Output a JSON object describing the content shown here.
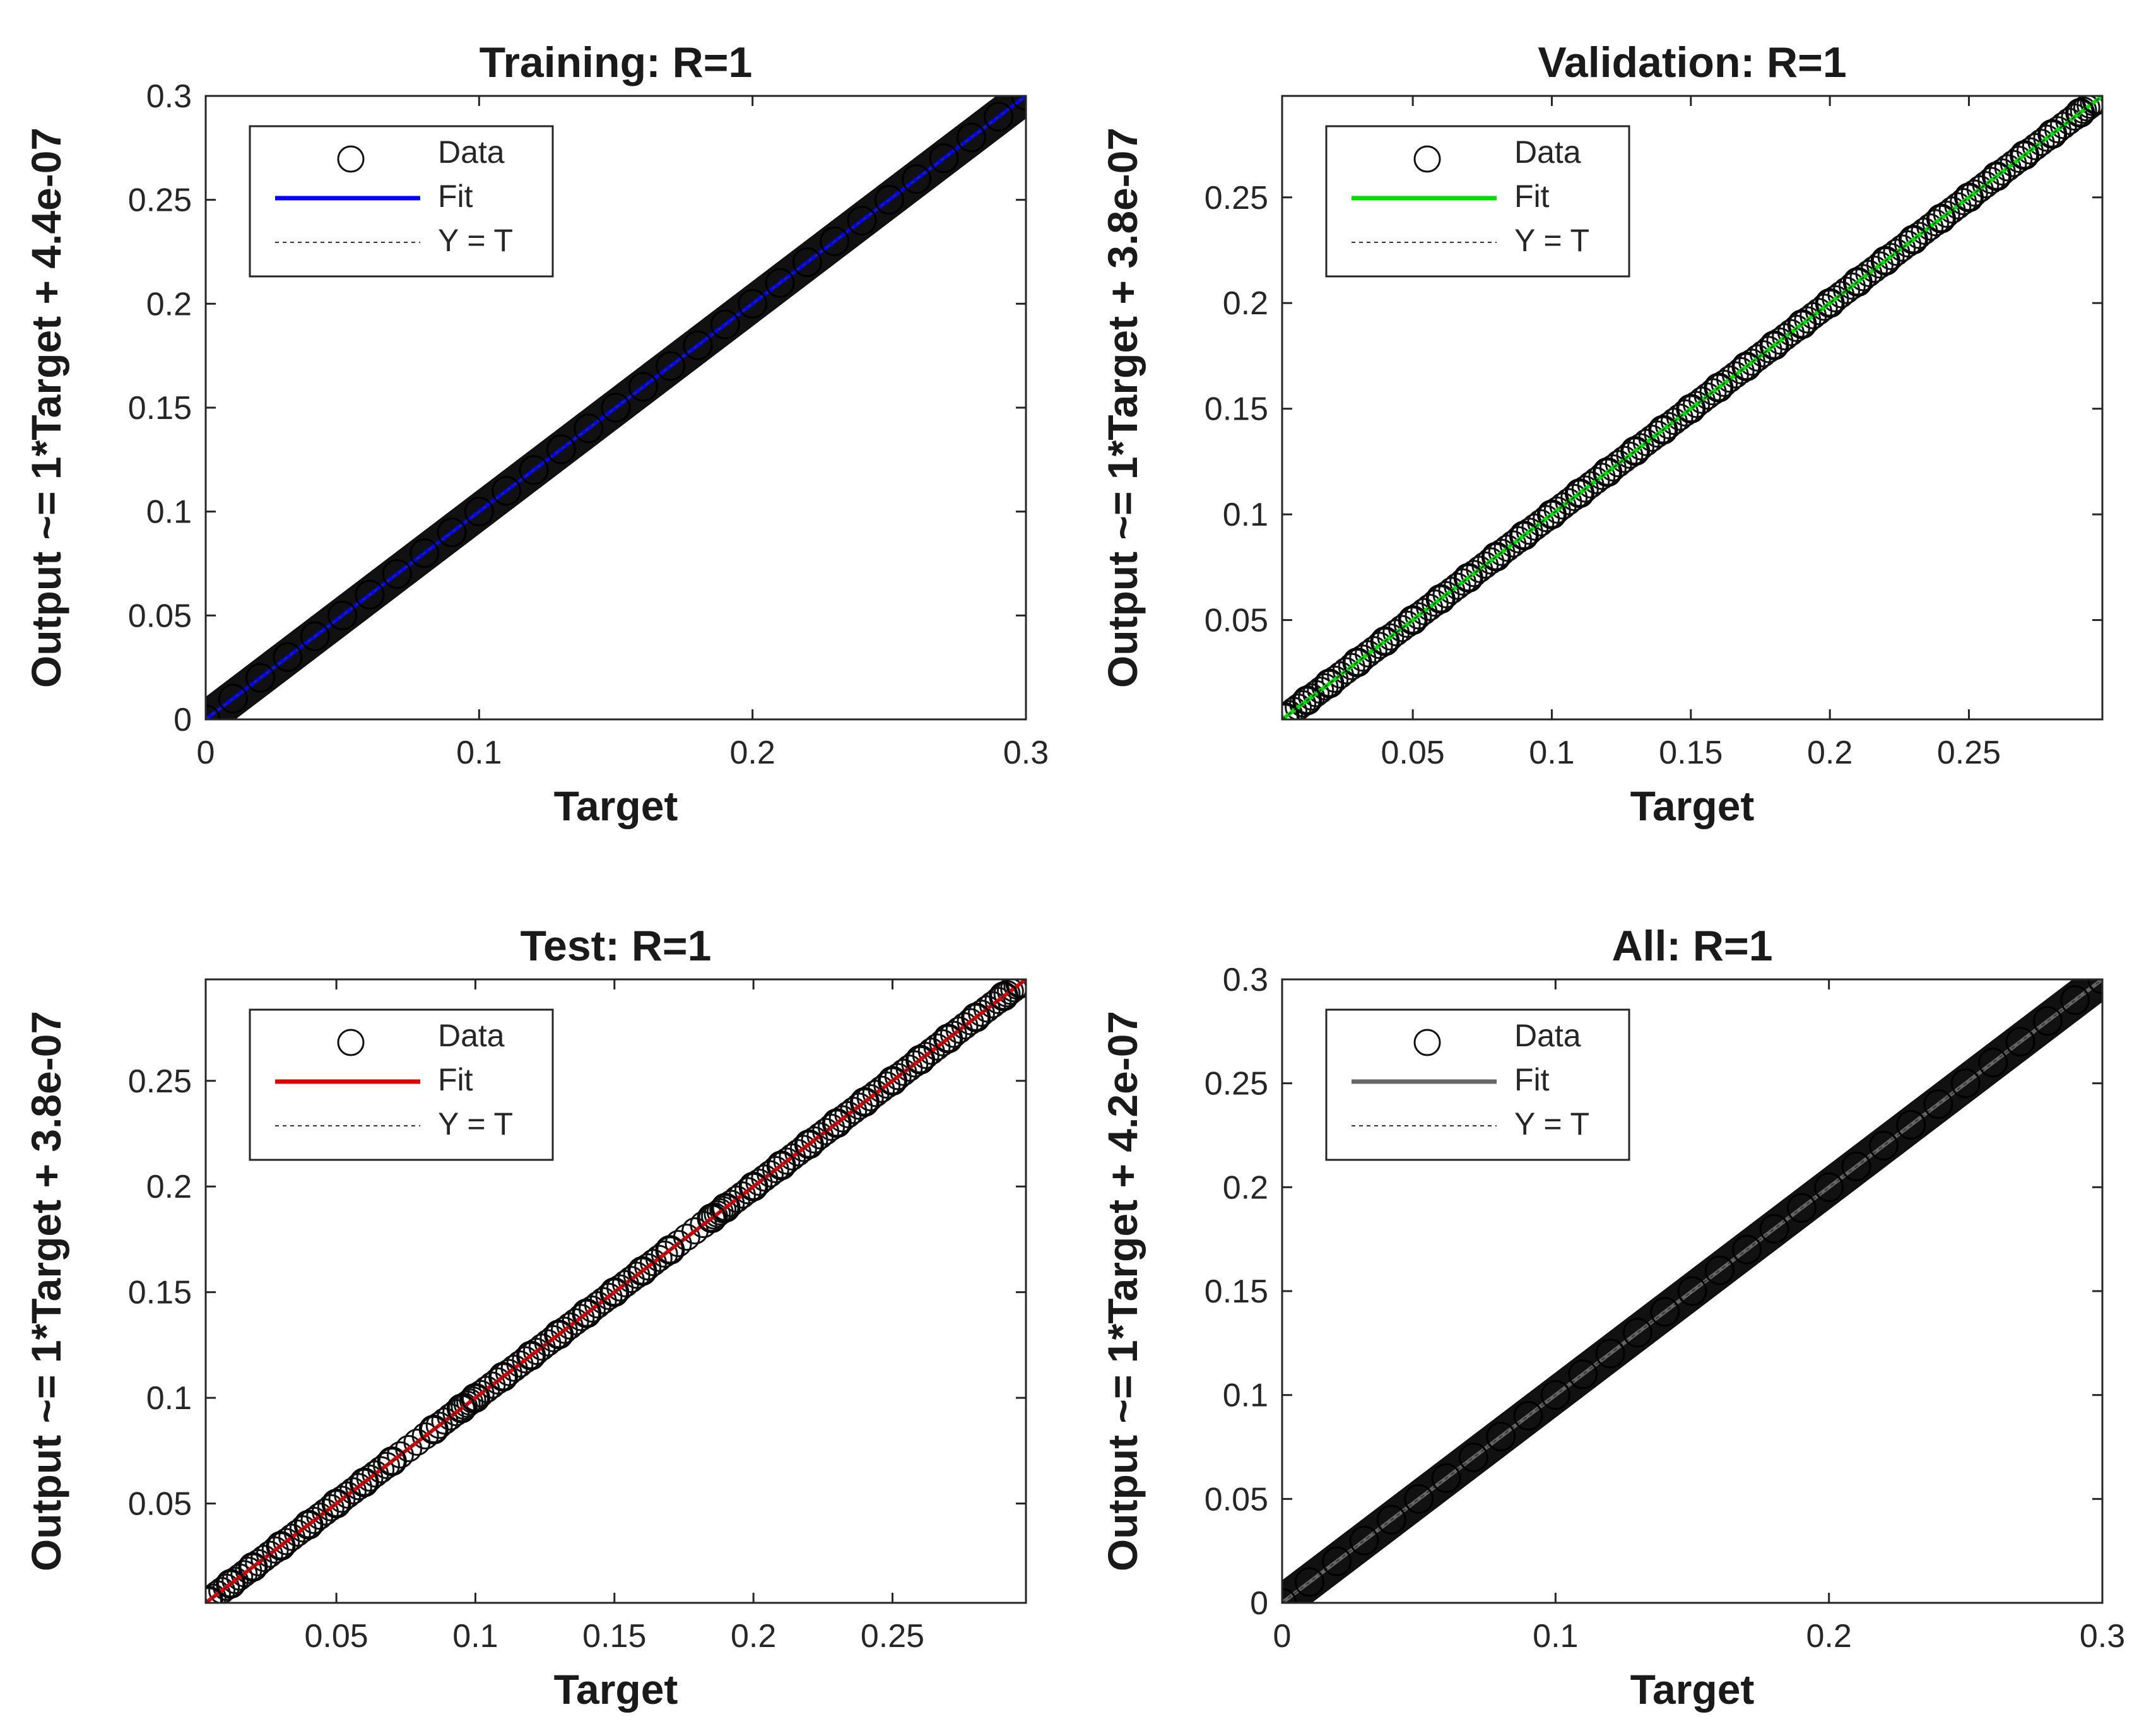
{
  "chart_data": [
    {
      "type": "scatter",
      "title": "Training: R=1",
      "xlabel": "Target",
      "ylabel": "Output ~= 1*Target + 4.4e-07",
      "xlim": [
        0,
        0.3
      ],
      "ylim": [
        0,
        0.3
      ],
      "xticks": [
        0,
        0.1,
        0.2,
        0.3
      ],
      "xtick_labels": [
        "0",
        "0.1",
        "0.2",
        "0.3"
      ],
      "yticks": [
        0,
        0.05,
        0.1,
        0.15,
        0.2,
        0.25,
        0.3
      ],
      "ytick_labels": [
        "0",
        "0.05",
        "0.1",
        "0.15",
        "0.2",
        "0.25",
        "0.3"
      ],
      "legend_position": "top-left",
      "colors": {
        "fit": "#0000ff",
        "marker": "#000000",
        "identity": "#333333"
      },
      "series": [
        {
          "name": "Data",
          "style": "circle-markers",
          "x": [
            0.0,
            0.01,
            0.02,
            0.03,
            0.04,
            0.05,
            0.06,
            0.07,
            0.08,
            0.09,
            0.1,
            0.11,
            0.12,
            0.13,
            0.14,
            0.15,
            0.16,
            0.17,
            0.18,
            0.19,
            0.2,
            0.21,
            0.22,
            0.23,
            0.24,
            0.25,
            0.26,
            0.27,
            0.28,
            0.29,
            0.3
          ],
          "y": [
            0.0,
            0.01,
            0.02,
            0.03,
            0.04,
            0.05,
            0.06,
            0.07,
            0.08,
            0.09,
            0.1,
            0.11,
            0.12,
            0.13,
            0.14,
            0.15,
            0.16,
            0.17,
            0.18,
            0.19,
            0.2,
            0.21,
            0.22,
            0.23,
            0.24,
            0.25,
            0.26,
            0.27,
            0.28,
            0.29,
            0.3
          ]
        },
        {
          "name": "Fit",
          "style": "solid-line",
          "x": [
            0,
            0.3
          ],
          "y": [
            0,
            0.3
          ]
        },
        {
          "name": "Y = T",
          "style": "dotted-line",
          "x": [
            0,
            0.3
          ],
          "y": [
            0,
            0.3
          ]
        }
      ],
      "legend": [
        "Data",
        "Fit",
        "Y = T"
      ]
    },
    {
      "type": "scatter",
      "title": "Validation: R=1",
      "xlabel": "Target",
      "ylabel": "Output ~= 1*Target + 3.8e-07",
      "xlim": [
        0.003,
        0.298
      ],
      "ylim": [
        0.003,
        0.298
      ],
      "xticks": [
        0.05,
        0.1,
        0.15,
        0.2,
        0.25
      ],
      "xtick_labels": [
        "0.05",
        "0.1",
        "0.15",
        "0.2",
        "0.25"
      ],
      "yticks": [
        0.05,
        0.1,
        0.15,
        0.2,
        0.25
      ],
      "ytick_labels": [
        "0.05",
        "0.1",
        "0.15",
        "0.2",
        "0.25"
      ],
      "legend_position": "top-left",
      "colors": {
        "fit": "#00dd00",
        "marker": "#000000",
        "identity": "#333333"
      },
      "series": [
        {
          "name": "Data",
          "style": "circle-markers",
          "x": [
            0.004,
            0.012,
            0.02,
            0.03,
            0.04,
            0.05,
            0.06,
            0.07,
            0.08,
            0.09,
            0.1,
            0.11,
            0.12,
            0.13,
            0.14,
            0.15,
            0.16,
            0.17,
            0.18,
            0.19,
            0.2,
            0.21,
            0.22,
            0.23,
            0.24,
            0.25,
            0.26,
            0.27,
            0.28,
            0.29,
            0.296
          ],
          "y": [
            0.004,
            0.012,
            0.02,
            0.03,
            0.04,
            0.05,
            0.06,
            0.07,
            0.08,
            0.09,
            0.1,
            0.11,
            0.12,
            0.13,
            0.14,
            0.15,
            0.16,
            0.17,
            0.18,
            0.19,
            0.2,
            0.21,
            0.22,
            0.23,
            0.24,
            0.25,
            0.26,
            0.27,
            0.28,
            0.29,
            0.296
          ]
        },
        {
          "name": "Fit",
          "style": "solid-line",
          "x": [
            0.003,
            0.298
          ],
          "y": [
            0.003,
            0.298
          ]
        },
        {
          "name": "Y = T",
          "style": "dotted-line",
          "x": [
            0.003,
            0.298
          ],
          "y": [
            0.003,
            0.298
          ]
        }
      ],
      "legend": [
        "Data",
        "Fit",
        "Y = T"
      ]
    },
    {
      "type": "scatter",
      "title": "Test: R=1",
      "xlabel": "Target",
      "ylabel": "Output ~= 1*Target + 3.8e-07",
      "xlim": [
        0.003,
        0.298
      ],
      "ylim": [
        0.003,
        0.298
      ],
      "xticks": [
        0.05,
        0.1,
        0.15,
        0.2,
        0.25
      ],
      "xtick_labels": [
        "0.05",
        "0.1",
        "0.15",
        "0.2",
        "0.25"
      ],
      "yticks": [
        0.05,
        0.1,
        0.15,
        0.2,
        0.25
      ],
      "ytick_labels": [
        "0.05",
        "0.1",
        "0.15",
        "0.2",
        "0.25"
      ],
      "legend_position": "top-left",
      "colors": {
        "fit": "#dd0000",
        "marker": "#000000",
        "identity": "#333333"
      },
      "series": [
        {
          "name": "Data",
          "style": "circle-markers",
          "x": [
            0.004,
            0.012,
            0.02,
            0.03,
            0.04,
            0.05,
            0.06,
            0.07,
            0.085,
            0.095,
            0.1,
            0.11,
            0.12,
            0.13,
            0.14,
            0.15,
            0.16,
            0.17,
            0.185,
            0.19,
            0.2,
            0.21,
            0.22,
            0.23,
            0.24,
            0.25,
            0.26,
            0.27,
            0.28,
            0.29,
            0.296
          ],
          "y": [
            0.004,
            0.012,
            0.02,
            0.03,
            0.04,
            0.05,
            0.06,
            0.07,
            0.085,
            0.095,
            0.1,
            0.11,
            0.12,
            0.13,
            0.14,
            0.15,
            0.16,
            0.17,
            0.185,
            0.19,
            0.2,
            0.21,
            0.22,
            0.23,
            0.24,
            0.25,
            0.26,
            0.27,
            0.28,
            0.29,
            0.296
          ]
        },
        {
          "name": "Fit",
          "style": "solid-line",
          "x": [
            0.003,
            0.298
          ],
          "y": [
            0.003,
            0.298
          ]
        },
        {
          "name": "Y = T",
          "style": "dotted-line",
          "x": [
            0.003,
            0.298
          ],
          "y": [
            0.003,
            0.298
          ]
        }
      ],
      "legend": [
        "Data",
        "Fit",
        "Y = T"
      ]
    },
    {
      "type": "scatter",
      "title": "All: R=1",
      "xlabel": "Target",
      "ylabel": "Output ~= 1*Target + 4.2e-07",
      "xlim": [
        0,
        0.3
      ],
      "ylim": [
        0,
        0.3
      ],
      "xticks": [
        0,
        0.1,
        0.2,
        0.3
      ],
      "xtick_labels": [
        "0",
        "0.1",
        "0.2",
        "0.3"
      ],
      "yticks": [
        0,
        0.05,
        0.1,
        0.15,
        0.2,
        0.25,
        0.3
      ],
      "ytick_labels": [
        "0",
        "0.05",
        "0.1",
        "0.15",
        "0.2",
        "0.25",
        "0.3"
      ],
      "legend_position": "top-left",
      "colors": {
        "fit": "#666666",
        "marker": "#000000",
        "identity": "#333333"
      },
      "series": [
        {
          "name": "Data",
          "style": "circle-markers",
          "x": [
            0.0,
            0.01,
            0.02,
            0.03,
            0.04,
            0.05,
            0.06,
            0.07,
            0.08,
            0.09,
            0.1,
            0.11,
            0.12,
            0.13,
            0.14,
            0.15,
            0.16,
            0.17,
            0.18,
            0.19,
            0.2,
            0.21,
            0.22,
            0.23,
            0.24,
            0.25,
            0.26,
            0.27,
            0.28,
            0.29,
            0.3
          ],
          "y": [
            0.0,
            0.01,
            0.02,
            0.03,
            0.04,
            0.05,
            0.06,
            0.07,
            0.08,
            0.09,
            0.1,
            0.11,
            0.12,
            0.13,
            0.14,
            0.15,
            0.16,
            0.17,
            0.18,
            0.19,
            0.2,
            0.21,
            0.22,
            0.23,
            0.24,
            0.25,
            0.26,
            0.27,
            0.28,
            0.29,
            0.3
          ]
        },
        {
          "name": "Fit",
          "style": "solid-line",
          "x": [
            0,
            0.3
          ],
          "y": [
            0,
            0.3
          ]
        },
        {
          "name": "Y = T",
          "style": "dotted-line",
          "x": [
            0,
            0.3
          ],
          "y": [
            0,
            0.3
          ]
        }
      ],
      "legend": [
        "Data",
        "Fit",
        "Y = T"
      ]
    }
  ]
}
